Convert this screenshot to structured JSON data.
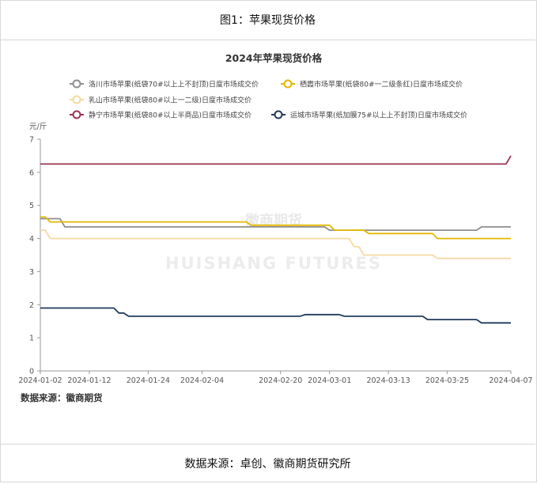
{
  "figure": {
    "title": "图1：苹果现货价格",
    "source": "数据来源：卓创、徽商期货研究所"
  },
  "watermark": {
    "cn": "徽商期货",
    "en": "HUISHANG FUTURES"
  },
  "chart_note": "数据来源：徽商期货",
  "colors": {
    "luochuan": "#8e8e8e",
    "qixia": "#e3b800",
    "rushan": "#f5d9a2",
    "jingning": "#9b3450",
    "yuncheng": "#1f3a5a"
  },
  "chart_data": {
    "type": "line",
    "title": "2024年苹果现货价格",
    "ylabel": "元/斤",
    "ylim": [
      0,
      7
    ],
    "yticks": [
      0,
      1,
      2,
      3,
      4,
      5,
      6,
      7
    ],
    "xlim": [
      "2024-01-02",
      "2024-04-07"
    ],
    "xticks": [
      "2024-01-02",
      "2024-01-12",
      "2024-01-24",
      "2024-02-04",
      "2024-02-20",
      "2024-03-01",
      "2024-03-13",
      "2024-03-25",
      "2024-04-07"
    ],
    "grid": false,
    "legend_position": "top",
    "series": [
      {
        "name": "洛川市场苹果(纸袋70#以上上不封顶)日度市场成交价",
        "color_key": "luochuan",
        "points": [
          [
            "2024-01-02",
            4.6
          ],
          [
            "2024-01-06",
            4.6
          ],
          [
            "2024-01-07",
            4.35
          ],
          [
            "2024-02-29",
            4.35
          ],
          [
            "2024-03-01",
            4.25
          ],
          [
            "2024-03-31",
            4.25
          ],
          [
            "2024-04-01",
            4.35
          ],
          [
            "2024-04-07",
            4.35
          ]
        ]
      },
      {
        "name": "栖霞市场苹果(纸袋80#一二级条红)日度市场成交价",
        "color_key": "qixia",
        "points": [
          [
            "2024-01-02",
            4.65
          ],
          [
            "2024-01-03",
            4.65
          ],
          [
            "2024-01-04",
            4.5
          ],
          [
            "2024-02-13",
            4.5
          ],
          [
            "2024-02-14",
            4.4
          ],
          [
            "2024-03-01",
            4.4
          ],
          [
            "2024-03-02",
            4.25
          ],
          [
            "2024-03-08",
            4.25
          ],
          [
            "2024-03-09",
            4.15
          ],
          [
            "2024-03-22",
            4.15
          ],
          [
            "2024-03-23",
            4.0
          ],
          [
            "2024-04-07",
            4.0
          ]
        ]
      },
      {
        "name": "乳山市场苹果(纸袋80#以上一二级)日度市场成交价",
        "color_key": "rushan",
        "points": [
          [
            "2024-01-02",
            4.25
          ],
          [
            "2024-01-03",
            4.25
          ],
          [
            "2024-01-04",
            4.0
          ],
          [
            "2024-03-05",
            4.0
          ],
          [
            "2024-03-06",
            3.75
          ],
          [
            "2024-03-07",
            3.75
          ],
          [
            "2024-03-08",
            3.5
          ],
          [
            "2024-03-22",
            3.5
          ],
          [
            "2024-03-23",
            3.4
          ],
          [
            "2024-04-07",
            3.4
          ]
        ]
      },
      {
        "name": "静宁市场苹果(纸袋80#以上半商品)日度市场成交价",
        "color_key": "jingning",
        "points": [
          [
            "2024-01-02",
            6.25
          ],
          [
            "2024-04-06",
            6.25
          ],
          [
            "2024-04-07",
            6.5
          ]
        ]
      },
      {
        "name": "运城市场苹果(纸加膜75#以上上不封顶)日度市场成交价",
        "color_key": "yuncheng",
        "points": [
          [
            "2024-01-02",
            1.9
          ],
          [
            "2024-01-17",
            1.9
          ],
          [
            "2024-01-18",
            1.75
          ],
          [
            "2024-01-19",
            1.75
          ],
          [
            "2024-01-20",
            1.65
          ],
          [
            "2024-02-24",
            1.65
          ],
          [
            "2024-02-25",
            1.7
          ],
          [
            "2024-03-03",
            1.7
          ],
          [
            "2024-03-04",
            1.65
          ],
          [
            "2024-03-20",
            1.65
          ],
          [
            "2024-03-21",
            1.55
          ],
          [
            "2024-03-31",
            1.55
          ],
          [
            "2024-04-01",
            1.45
          ],
          [
            "2024-04-07",
            1.45
          ]
        ]
      }
    ]
  }
}
